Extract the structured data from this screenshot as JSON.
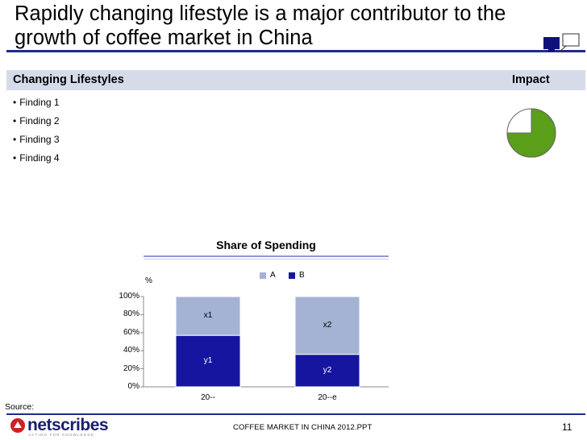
{
  "slide": {
    "title_line1": "Rapidly changing lifestyle is a major contributor to the",
    "title_line2": "growth of coffee market in China",
    "section_left": "Changing Lifestyles",
    "section_right": "Impact",
    "findings": [
      "Finding 1",
      "Finding 2",
      "Finding 3",
      "Finding 4"
    ],
    "impact_fraction": 0.75,
    "source_label": "Source:",
    "footer": "COFFEE MARKET IN CHINA 2012.PPT",
    "page_number": "11",
    "logo_text": "netscribes",
    "logo_tagline": "ACTING FOR KNOWLEDGE"
  },
  "colors": {
    "title_rule": "#1f2a8c",
    "section_band": "#d6dbea",
    "series_a": "#a4b2d4",
    "series_b": "#1515a0",
    "pie_fill": "#5a9e1a",
    "logo_red": "#cc2222"
  },
  "chart_data": {
    "type": "bar",
    "stacked": true,
    "title": "Share of Spending",
    "ylabel": "%",
    "categories": [
      "20--",
      "20--e"
    ],
    "series": [
      {
        "name": "B",
        "values": [
          57,
          36
        ],
        "labels": [
          "y1",
          "y2"
        ]
      },
      {
        "name": "A",
        "values": [
          43,
          64
        ],
        "labels": [
          "x1",
          "x2"
        ]
      }
    ],
    "legend": [
      "A",
      "B"
    ],
    "yticks": [
      "0%",
      "20%",
      "40%",
      "60%",
      "80%",
      "100%"
    ],
    "ylim": [
      0,
      100
    ],
    "legend_position": "top-right"
  }
}
